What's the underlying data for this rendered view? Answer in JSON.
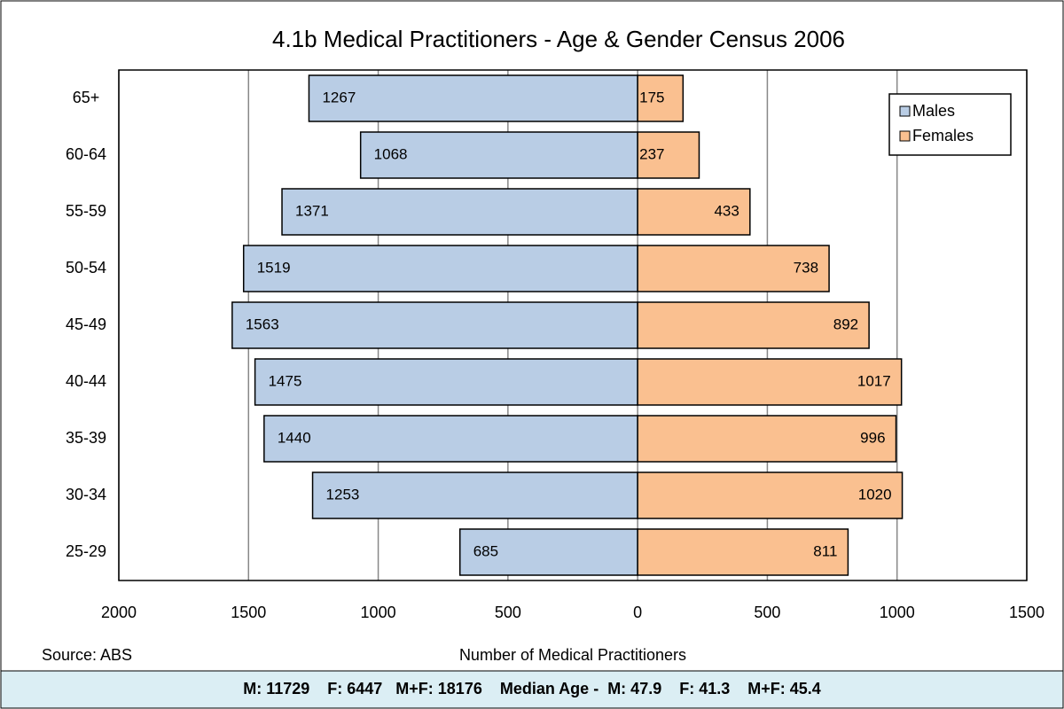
{
  "chart_data": {
    "type": "pyramid",
    "title": "4.1b Medical Practitioners - Age & Gender  Census 2006",
    "categories": [
      "65+",
      "60-64",
      "55-59",
      "50-54",
      "45-49",
      "40-44",
      "35-39",
      "30-34",
      "25-29"
    ],
    "series": [
      {
        "name": "Males",
        "color": "#b9cde5",
        "values": [
          -1267,
          -1068,
          -1371,
          -1519,
          -1563,
          -1475,
          -1440,
          -1253,
          -685
        ],
        "value_labels": [
          "1267",
          "1068",
          "1371",
          "1519",
          "1563",
          "1475",
          "1440",
          "1253",
          "685"
        ]
      },
      {
        "name": "Females",
        "color": "#fac090",
        "values": [
          175,
          237,
          433,
          738,
          892,
          1017,
          996,
          1020,
          811
        ]
      }
    ],
    "xlim": [
      -2000,
      1500
    ],
    "xticks": [
      {
        "value": -2000,
        "label": "2000"
      },
      {
        "value": -1500,
        "label": "1500"
      },
      {
        "value": -1000,
        "label": "1000"
      },
      {
        "value": -500,
        "label": "500"
      },
      0,
      500,
      1000,
      1500
    ],
    "xlabel": "Number of Medical Practitioners",
    "source": "Source: ABS",
    "footer": "M: 11729    F: 6447   M+F: 18176    Median Age -  M: 47.9    F: 41.3    M+F: 45.4",
    "grid": true,
    "legend": "upper right"
  }
}
